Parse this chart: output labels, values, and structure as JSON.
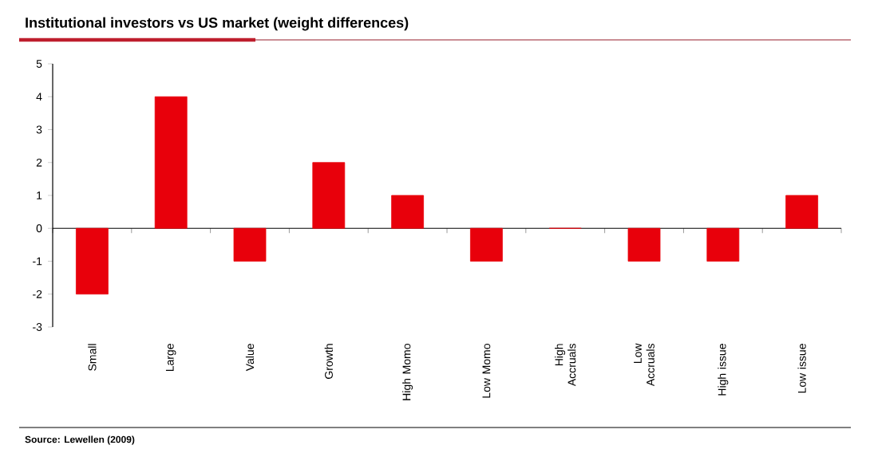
{
  "chart_data": {
    "type": "bar",
    "title": "Institutional investors vs US market (weight differences)",
    "categories": [
      "Small",
      "Large",
      "Value",
      "Growth",
      "High Momo",
      "Low Momo",
      "High Accruals",
      "Low Accruals",
      "High issue",
      "Low issue"
    ],
    "values": [
      -2,
      4,
      -1,
      2,
      1,
      -1,
      0,
      -1,
      -1,
      1
    ],
    "color": "#e8000b",
    "ylim": [
      -3,
      5
    ],
    "yticks": [
      -3,
      -2,
      -1,
      0,
      1,
      2,
      3,
      4,
      5
    ],
    "annotations": [
      "Source: Lewellen (2009)"
    ]
  }
}
